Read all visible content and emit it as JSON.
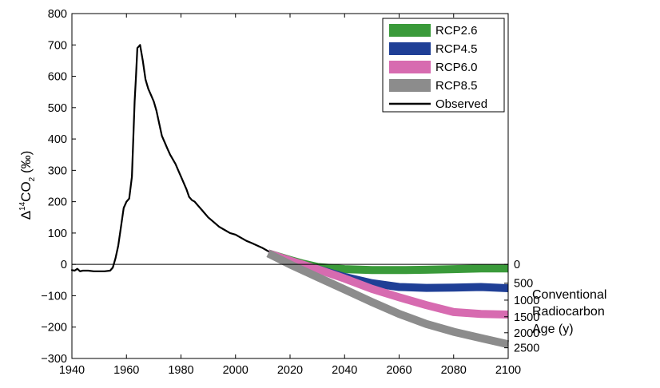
{
  "chart_data": {
    "type": "line",
    "ylabel": "Δ¹⁴CO₂ (‰)",
    "ylabel_parts": {
      "delta": "Δ",
      "sup": "14",
      "co": "CO",
      "sub": "2",
      "unit": " (‰)"
    },
    "right_axis_label": [
      "Conventional",
      "Radiocarbon",
      "Age (y)"
    ],
    "xlim": [
      1940,
      2100
    ],
    "ylim": [
      -300,
      800
    ],
    "x_ticks": [
      1940,
      1960,
      1980,
      2000,
      2020,
      2040,
      2060,
      2080,
      2100
    ],
    "y_ticks": [
      -300,
      -200,
      -100,
      0,
      100,
      200,
      300,
      400,
      500,
      600,
      700,
      800
    ],
    "right_ticks": [
      {
        "label": "0",
        "y": 0
      },
      {
        "label": "500",
        "y": -60
      },
      {
        "label": "1000",
        "y": -114
      },
      {
        "label": "1500",
        "y": -167
      },
      {
        "label": "2000",
        "y": -218
      },
      {
        "label": "2500",
        "y": -266
      }
    ],
    "grid": false,
    "zero_line": true,
    "legend_position": "top-right",
    "series": [
      {
        "name": "RCP2.6",
        "color": "#3a9a3a",
        "style": "band",
        "x": [
          2012,
          2020,
          2025,
          2030,
          2040,
          2050,
          2060,
          2070,
          2080,
          2090,
          2100
        ],
        "y": [
          35,
          14,
          2,
          -8,
          -15,
          -18,
          -18,
          -17,
          -15,
          -13,
          -13
        ]
      },
      {
        "name": "RCP4.5",
        "color": "#1f3f96",
        "style": "band",
        "x": [
          2012,
          2020,
          2030,
          2040,
          2050,
          2060,
          2070,
          2080,
          2090,
          2100
        ],
        "y": [
          35,
          10,
          -15,
          -40,
          -60,
          -72,
          -75,
          -74,
          -72,
          -76
        ]
      },
      {
        "name": "RCP6.0",
        "color": "#d76bb0",
        "style": "band",
        "x": [
          2012,
          2020,
          2030,
          2040,
          2050,
          2060,
          2070,
          2080,
          2090,
          2100
        ],
        "y": [
          35,
          12,
          -15,
          -45,
          -78,
          -105,
          -130,
          -152,
          -158,
          -160
        ]
      },
      {
        "name": "RCP8.5",
        "color": "#8c8c8c",
        "style": "band",
        "x": [
          2012,
          2020,
          2030,
          2040,
          2050,
          2060,
          2070,
          2080,
          2090,
          2100
        ],
        "y": [
          35,
          0,
          -40,
          -80,
          -120,
          -158,
          -190,
          -215,
          -235,
          -255
        ]
      },
      {
        "name": "Observed",
        "color": "#000000",
        "style": "line",
        "x": [
          1940,
          1941,
          1942,
          1943,
          1944,
          1946,
          1948,
          1950,
          1952,
          1954,
          1955,
          1956,
          1957,
          1958,
          1959,
          1960,
          1961,
          1962,
          1963,
          1963.5,
          1964,
          1965,
          1966,
          1967,
          1968,
          1969,
          1970,
          1971,
          1972,
          1973,
          1974,
          1975,
          1976,
          1977,
          1978,
          1979,
          1980,
          1981,
          1982,
          1983,
          1984,
          1985,
          1986,
          1988,
          1990,
          1992,
          1994,
          1996,
          1998,
          2000,
          2002,
          2004,
          2006,
          2008,
          2010,
          2012
        ],
        "y": [
          -18,
          -20,
          -14,
          -22,
          -20,
          -20,
          -22,
          -22,
          -22,
          -20,
          -10,
          20,
          60,
          120,
          180,
          200,
          210,
          280,
          520,
          600,
          690,
          700,
          650,
          590,
          560,
          540,
          520,
          490,
          450,
          410,
          390,
          370,
          350,
          335,
          320,
          300,
          280,
          260,
          240,
          215,
          205,
          200,
          190,
          170,
          150,
          135,
          120,
          110,
          100,
          95,
          85,
          75,
          68,
          60,
          52,
          42
        ]
      }
    ]
  }
}
